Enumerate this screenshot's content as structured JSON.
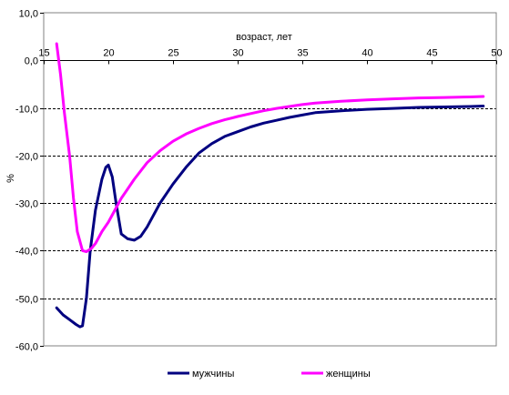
{
  "chart_data": {
    "type": "line",
    "title": "",
    "xlabel": "возраст, лет",
    "ylabel": "%",
    "xlim": [
      15,
      50
    ],
    "ylim": [
      -60,
      10
    ],
    "x_ticks": [
      15,
      20,
      25,
      30,
      35,
      40,
      45,
      50
    ],
    "x_tick_labels": [
      "15",
      "20",
      "25",
      "30",
      "35",
      "40",
      "45",
      "50"
    ],
    "y_ticks": [
      10,
      0,
      -10,
      -20,
      -30,
      -40,
      -50,
      -60
    ],
    "y_tick_labels": [
      "10,0",
      "0,0",
      "-10,0",
      "-20,0",
      "-30,0",
      "-40,0",
      "-50,0",
      "-60,0"
    ],
    "grid": "horizontal dashed",
    "legend_position": "bottom",
    "series": [
      {
        "name": "мужчины",
        "color": "#000080",
        "x": [
          16.0,
          16.5,
          17.0,
          17.5,
          17.8,
          18.0,
          18.3,
          18.6,
          19.0,
          19.5,
          19.8,
          20.0,
          20.3,
          20.6,
          21.0,
          21.5,
          22.0,
          22.5,
          23.0,
          24.0,
          25.0,
          26.0,
          27.0,
          28.0,
          29.0,
          30.0,
          31.0,
          32.0,
          33.0,
          34.0,
          35.0,
          36.0,
          38.0,
          40.0,
          42.0,
          44.0,
          46.0,
          48.0,
          49.0
        ],
        "y": [
          -52.0,
          -53.5,
          -54.5,
          -55.5,
          -56.0,
          -55.8,
          -50.0,
          -40.0,
          -31.5,
          -25.0,
          -22.5,
          -22.0,
          -24.5,
          -30.0,
          -36.5,
          -37.5,
          -37.8,
          -37.0,
          -35.0,
          -30.0,
          -26.0,
          -22.5,
          -19.5,
          -17.5,
          -16.0,
          -15.0,
          -14.0,
          -13.2,
          -12.6,
          -12.0,
          -11.5,
          -11.0,
          -10.6,
          -10.3,
          -10.1,
          -9.9,
          -9.8,
          -9.7,
          -9.6
        ]
      },
      {
        "name": "женщины",
        "color": "#FF00FF",
        "x": [
          16.0,
          16.3,
          16.6,
          17.0,
          17.3,
          17.6,
          18.0,
          18.3,
          18.7,
          19.0,
          19.5,
          20.0,
          20.5,
          21.0,
          21.5,
          22.0,
          23.0,
          24.0,
          25.0,
          26.0,
          27.0,
          28.0,
          29.0,
          30.0,
          31.0,
          32.0,
          33.0,
          34.0,
          35.0,
          36.0,
          38.0,
          40.0,
          42.0,
          44.0,
          46.0,
          48.0,
          49.0
        ],
        "y": [
          3.5,
          -3.0,
          -11.0,
          -20.0,
          -29.0,
          -36.0,
          -40.0,
          -40.2,
          -39.5,
          -38.5,
          -36.0,
          -34.0,
          -31.5,
          -29.0,
          -27.0,
          -25.0,
          -21.5,
          -19.0,
          -17.0,
          -15.5,
          -14.3,
          -13.3,
          -12.5,
          -11.8,
          -11.2,
          -10.6,
          -10.1,
          -9.7,
          -9.3,
          -9.0,
          -8.6,
          -8.3,
          -8.1,
          -7.9,
          -7.8,
          -7.7,
          -7.6
        ]
      }
    ]
  }
}
